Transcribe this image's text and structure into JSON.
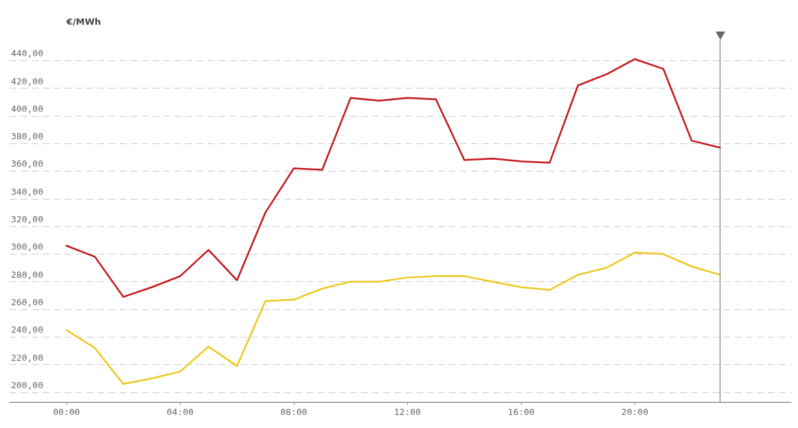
{
  "chart_data": {
    "type": "line",
    "ylabel": "€/MWh",
    "x": [
      0,
      1,
      2,
      3,
      4,
      5,
      6,
      7,
      8,
      9,
      10,
      11,
      12,
      13,
      14,
      15,
      16,
      17,
      18,
      19,
      20,
      21,
      22,
      23
    ],
    "series": [
      {
        "color": "#c4161c",
        "values": [
          306,
          298,
          269,
          276,
          284,
          303,
          281,
          330,
          362,
          361,
          413,
          411,
          413,
          412,
          368,
          369,
          367,
          366,
          422,
          430,
          441,
          434,
          382,
          377
        ]
      },
      {
        "color": "#edc81f",
        "values": [
          245,
          232,
          206,
          210,
          215,
          233,
          219,
          266,
          267,
          275,
          280,
          280,
          283,
          284,
          284,
          280,
          276,
          274,
          285,
          290,
          301,
          300,
          291,
          285
        ]
      }
    ],
    "xlim": [
      -2,
      25.5
    ],
    "xticks": [
      {
        "value": 0,
        "label": "00:00"
      },
      {
        "value": 4,
        "label": "04:00"
      },
      {
        "value": 8,
        "label": "08:00"
      },
      {
        "value": 12,
        "label": "12:00"
      },
      {
        "value": 16,
        "label": "16:00"
      },
      {
        "value": 20,
        "label": "20:00"
      }
    ],
    "ylim": [
      193,
      455
    ],
    "yticks": [
      {
        "value": 200,
        "label": "200,00"
      },
      {
        "value": 220,
        "label": "220,00"
      },
      {
        "value": 240,
        "label": "240,00"
      },
      {
        "value": 260,
        "label": "260,00"
      },
      {
        "value": 280,
        "label": "280,00"
      },
      {
        "value": 300,
        "label": "300,00"
      },
      {
        "value": 320,
        "label": "320,00"
      },
      {
        "value": 340,
        "label": "340,00"
      },
      {
        "value": 360,
        "label": "360,00"
      },
      {
        "value": 380,
        "label": "380,00"
      },
      {
        "value": 400,
        "label": "400,00"
      },
      {
        "value": 420,
        "label": "420,00"
      },
      {
        "value": 440,
        "label": "440,00"
      }
    ],
    "grid": "y",
    "marker": "none",
    "line_style": "solid",
    "ref_lines": [
      {
        "axis": "x",
        "value": 23,
        "color": "#666666"
      }
    ]
  }
}
